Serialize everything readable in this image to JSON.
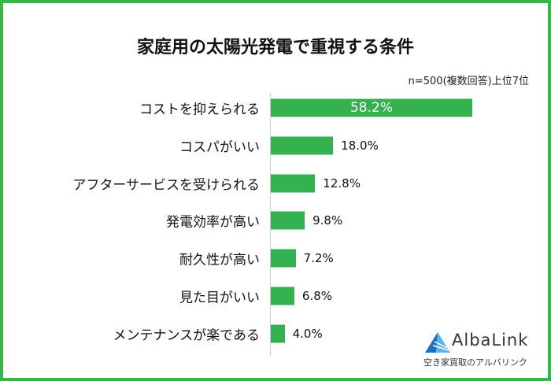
{
  "chart_data": {
    "type": "bar",
    "orientation": "horizontal",
    "title": "家庭用の太陽光発電で重視する条件",
    "note": "n=500(複数回答)上位7位",
    "categories": [
      "コストを抑えられる",
      "コスパがいい",
      "アフターサービスを受けられる",
      "発電効率が高い",
      "耐久性が高い",
      "見た目がいい",
      "メンテナンスが楽である"
    ],
    "values": [
      58.2,
      18.0,
      12.8,
      9.8,
      7.2,
      6.8,
      4.0
    ],
    "labels": [
      "58.2%",
      "18.0%",
      "12.8%",
      "9.8%",
      "7.2%",
      "6.8%",
      "4.0%"
    ],
    "unit": "%",
    "xlim": [
      0,
      58.2
    ],
    "color": "#33b24f"
  },
  "logo": {
    "name": "AlbaLink",
    "tagline": "空き家買取のアルバリンク"
  }
}
